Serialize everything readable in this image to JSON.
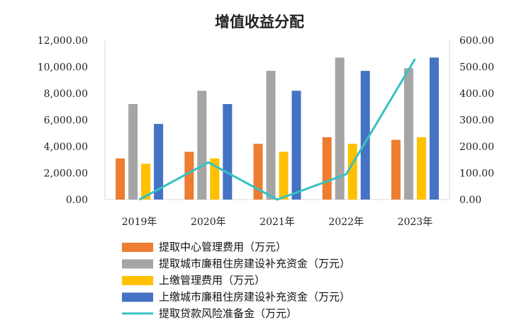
{
  "chart_data": {
    "type": "bar",
    "title": "增值收益分配",
    "categories": [
      "2019年",
      "2020年",
      "2021年",
      "2022年",
      "2023年"
    ],
    "y_left": {
      "ticks": [
        "0.00",
        "2,000.00",
        "4,000.00",
        "6,000.00",
        "8,000.00",
        "10,000.00",
        "12,000.00"
      ],
      "ylim": [
        0,
        12000
      ]
    },
    "y_right": {
      "ticks": [
        "0.00",
        "100.00",
        "200.00",
        "300.00",
        "400.00",
        "500.00",
        "600.00"
      ],
      "ylim": [
        0,
        600
      ]
    },
    "grid": false,
    "legend_position": "bottom",
    "series": [
      {
        "name": "提取中心管理费用（万元）",
        "type": "bar",
        "axis": "left",
        "color": "#ED7D31",
        "values": [
          3100,
          3600,
          4200,
          4700,
          4500
        ]
      },
      {
        "name": "提取城市廉租住房建设补充资金（万元）",
        "type": "bar",
        "axis": "left",
        "color": "#A5A5A5",
        "values": [
          7200,
          8200,
          9700,
          10700,
          9900
        ]
      },
      {
        "name": "上缴管理费用（万元）",
        "type": "bar",
        "axis": "left",
        "color": "#FFC000",
        "values": [
          2700,
          3100,
          3600,
          4200,
          4700
        ]
      },
      {
        "name": "上缴城市廉租住房建设补充资金（万元）",
        "type": "bar",
        "axis": "left",
        "color": "#4472C4",
        "values": [
          5700,
          7200,
          8200,
          9700,
          10700
        ]
      },
      {
        "name": "提取贷款风险准备金（万元）",
        "type": "line",
        "axis": "right",
        "color": "#36C2C2",
        "values": [
          0,
          140,
          0,
          95,
          530
        ]
      }
    ]
  }
}
